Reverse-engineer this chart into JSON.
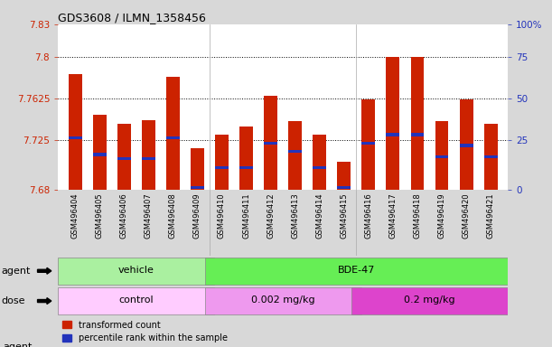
{
  "title": "GDS3608 / ILMN_1358456",
  "samples": [
    "GSM496404",
    "GSM496405",
    "GSM496406",
    "GSM496407",
    "GSM496408",
    "GSM496409",
    "GSM496410",
    "GSM496411",
    "GSM496412",
    "GSM496413",
    "GSM496414",
    "GSM496415",
    "GSM496416",
    "GSM496417",
    "GSM496418",
    "GSM496419",
    "GSM496420",
    "GSM496421"
  ],
  "bar_tops": [
    7.785,
    7.748,
    7.74,
    7.743,
    7.782,
    7.718,
    7.73,
    7.737,
    7.765,
    7.742,
    7.73,
    7.705,
    7.762,
    7.8,
    7.8,
    7.742,
    7.762,
    7.74
  ],
  "blue_markers": [
    7.727,
    7.712,
    7.708,
    7.708,
    7.727,
    7.682,
    7.7,
    7.7,
    7.722,
    7.715,
    7.7,
    7.682,
    7.722,
    7.73,
    7.73,
    7.71,
    7.72,
    7.71
  ],
  "bar_bottom": 7.68,
  "ylim_min": 7.68,
  "ylim_max": 7.83,
  "yticks_left": [
    7.68,
    7.725,
    7.7625,
    7.8,
    7.83
  ],
  "yticks_right_vals": [
    0,
    25,
    50,
    75,
    100
  ],
  "yticks_right_pos": [
    7.68,
    7.725,
    7.7625,
    7.8,
    7.83
  ],
  "grid_vals": [
    7.725,
    7.7625,
    7.8
  ],
  "bar_color": "#cc2200",
  "blue_color": "#2233bb",
  "bg_color": "#d8d8d8",
  "plot_bg": "#ffffff",
  "agent_vehicle_color": "#aaf0a0",
  "agent_bde_color": "#66ee55",
  "dose_control_color": "#ffccff",
  "dose_low_color": "#ee99ee",
  "dose_high_color": "#dd44cc",
  "agent_groups": [
    {
      "label": "vehicle",
      "start": 0,
      "end": 6
    },
    {
      "label": "BDE-47",
      "start": 6,
      "end": 18
    }
  ],
  "dose_groups": [
    {
      "label": "control",
      "start": 0,
      "end": 6
    },
    {
      "label": "0.002 mg/kg",
      "start": 6,
      "end": 12
    },
    {
      "label": "0.2 mg/kg",
      "start": 12,
      "end": 18
    }
  ],
  "legend_red": "transformed count",
  "legend_blue": "percentile rank within the sample",
  "bar_width": 0.55
}
